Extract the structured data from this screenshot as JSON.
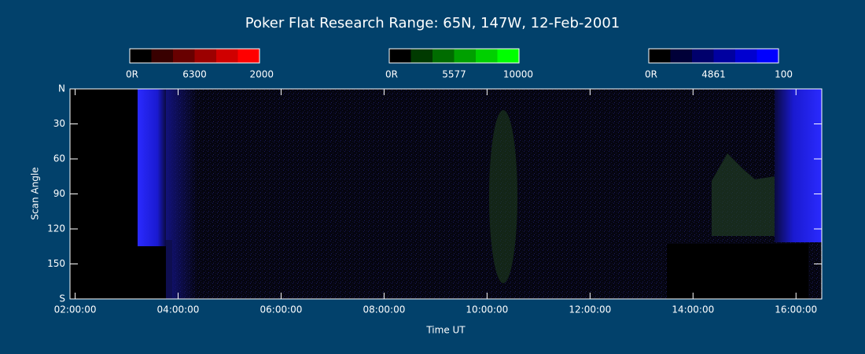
{
  "chart_data": {
    "type": "keogram",
    "title": "Poker Flat Research Range: 65N, 147W, 12-Feb-2001",
    "xlabel": "Time UT",
    "ylabel": "Scan Angle",
    "xlim": [
      1.9,
      16.5
    ],
    "xticks": [
      {
        "value": 2,
        "label": "02:00:00"
      },
      {
        "value": 4,
        "label": "04:00:00"
      },
      {
        "value": 6,
        "label": "06:00:00"
      },
      {
        "value": 8,
        "label": "08:00:00"
      },
      {
        "value": 10,
        "label": "10:00:00"
      },
      {
        "value": 12,
        "label": "12:00:00"
      },
      {
        "value": 14,
        "label": "14:00:00"
      },
      {
        "value": 16,
        "label": "16:00:00"
      }
    ],
    "ylim": [
      0,
      180
    ],
    "y_inverted": true,
    "yticks": [
      {
        "value": 0,
        "label": "N"
      },
      30,
      60,
      90,
      120,
      150,
      {
        "value": 180,
        "label": "S"
      }
    ],
    "colorbars": [
      {
        "wavelength": "6300",
        "range": [
          {
            "value": 0,
            "label": "0R"
          },
          2000
        ],
        "colors": [
          "#000000",
          "#380000",
          "#680000",
          "#9c0000",
          "#d00000",
          "#ff0000"
        ]
      },
      {
        "wavelength": "5577",
        "range": [
          {
            "value": 0,
            "label": "0R"
          },
          10000
        ],
        "colors": [
          "#000000",
          "#003a00",
          "#006c00",
          "#00a000",
          "#00d000",
          "#00ff00"
        ]
      },
      {
        "wavelength": "4861",
        "range": [
          {
            "value": 0,
            "label": "0R"
          },
          100
        ],
        "colors": [
          "#000000",
          "#000038",
          "#00006c",
          "#0000a0",
          "#0000d0",
          "#0000ff"
        ]
      }
    ]
  }
}
